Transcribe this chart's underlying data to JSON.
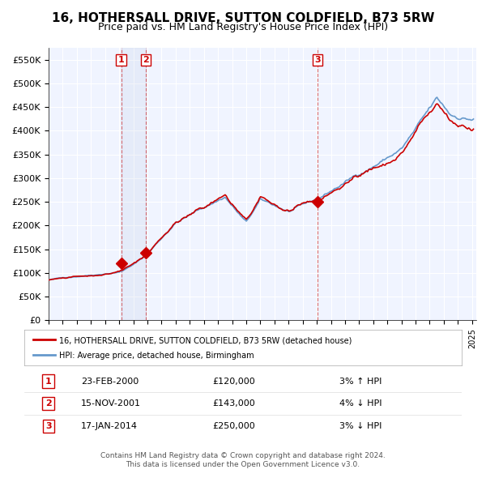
{
  "title": "16, HOTHERSALL DRIVE, SUTTON COLDFIELD, B73 5RW",
  "subtitle": "Price paid vs. HM Land Registry's House Price Index (HPI)",
  "title_fontsize": 12,
  "subtitle_fontsize": 10,
  "ylim": [
    0,
    575000
  ],
  "yticks": [
    0,
    50000,
    100000,
    150000,
    200000,
    250000,
    300000,
    350000,
    400000,
    450000,
    500000,
    550000
  ],
  "ytick_labels": [
    "£0",
    "£50K",
    "£100K",
    "£150K",
    "£200K",
    "£250K",
    "£300K",
    "£350K",
    "£400K",
    "£450K",
    "£500K",
    "£550K"
  ],
  "xmin": 1995.0,
  "xmax": 2025.3,
  "background_color": "#f0f4ff",
  "plot_bg": "#f0f4ff",
  "grid_color": "#ffffff",
  "red_line_color": "#cc0000",
  "blue_line_color": "#6699cc",
  "marker_color": "#cc0000",
  "sale1_x": 2000.14,
  "sale1_y": 120000,
  "sale2_x": 2001.88,
  "sale2_y": 143000,
  "sale3_x": 2014.05,
  "sale3_y": 250000,
  "vline1_x": 2000.14,
  "vline2_x": 2001.88,
  "vline3_x": 2014.05,
  "shade_x1": 2000.14,
  "shade_x2": 2001.88,
  "legend_address": "16, HOTHERSALL DRIVE, SUTTON COLDFIELD, B73 5RW (detached house)",
  "legend_hpi": "HPI: Average price, detached house, Birmingham",
  "table_data": [
    {
      "num": "1",
      "date": "23-FEB-2000",
      "price": "£120,000",
      "hpi": "3% ↑ HPI"
    },
    {
      "num": "2",
      "date": "15-NOV-2001",
      "price": "£143,000",
      "hpi": "4% ↓ HPI"
    },
    {
      "num": "3",
      "date": "17-JAN-2014",
      "price": "£250,000",
      "hpi": "3% ↓ HPI"
    }
  ],
  "footer1": "Contains HM Land Registry data © Crown copyright and database right 2024.",
  "footer2": "This data is licensed under the Open Government Licence v3.0."
}
